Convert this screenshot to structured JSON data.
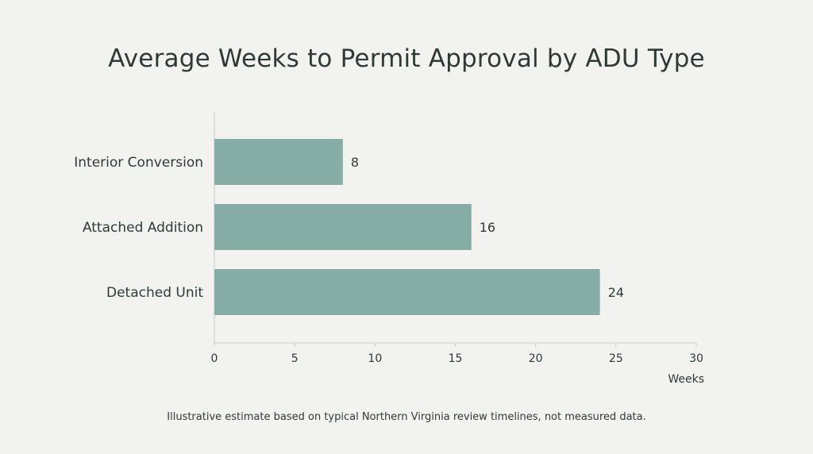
{
  "chart_data": {
    "type": "bar",
    "orientation": "horizontal",
    "title": "Average Weeks to Permit Approval by ADU Type",
    "categories": [
      "Interior Conversion",
      "Attached Addition",
      "Detached Unit"
    ],
    "values": [
      8,
      16,
      24
    ],
    "xlabel": "Weeks",
    "ylabel": "",
    "xlim": [
      0,
      30
    ],
    "xticks": [
      0,
      5,
      10,
      15,
      20,
      25,
      30
    ],
    "grid": false,
    "bar_color": "#86aca6"
  },
  "caption": "Illustrative estimate based on typical Northern Virginia review timelines, not measured data."
}
